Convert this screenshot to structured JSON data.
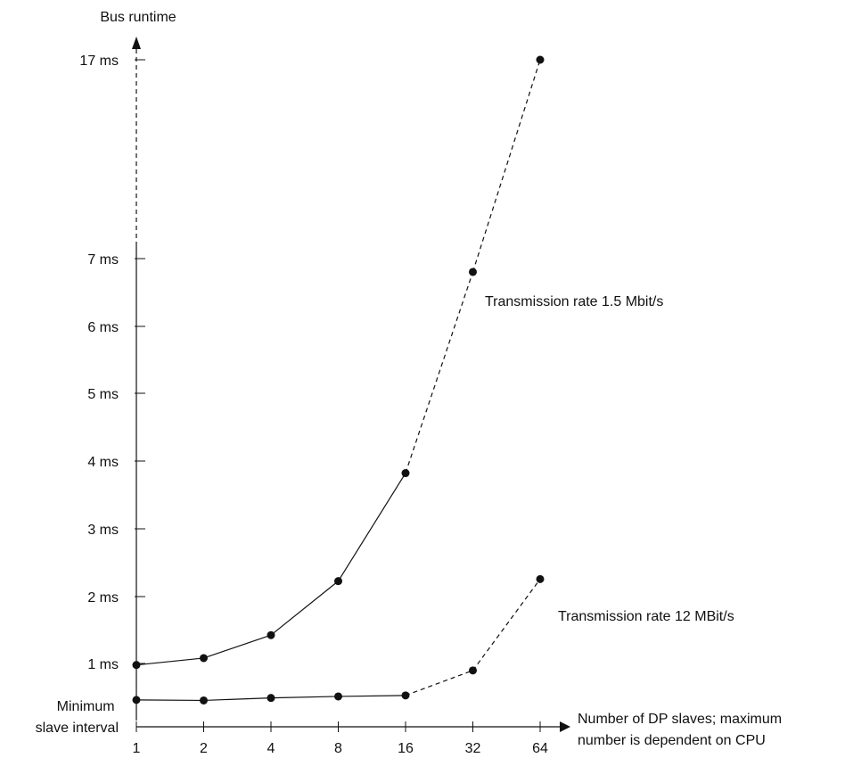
{
  "chart_data": {
    "type": "line",
    "ylabel": "Bus runtime",
    "xlabel_lines": [
      "Number of DP slaves; maximum",
      "number is dependent on CPU"
    ],
    "x_categories": [
      "1",
      "2",
      "4",
      "8",
      "16",
      "32",
      "64"
    ],
    "y_ticks": [
      {
        "label": "1 ms",
        "value": 1
      },
      {
        "label": "2 ms",
        "value": 2
      },
      {
        "label": "3 ms",
        "value": 3
      },
      {
        "label": "4 ms",
        "value": 4
      },
      {
        "label": "5 ms",
        "value": 5
      },
      {
        "label": "6 ms",
        "value": 6
      },
      {
        "label": "7 ms",
        "value": 7
      },
      {
        "label": "17 ms",
        "value": 17
      }
    ],
    "y_min_label_lines": [
      "Minimum",
      "slave interval"
    ],
    "y_axis_note": "axis break between 7 ms and 17 ms",
    "series": [
      {
        "name": "Transmission rate 1.5 Mbit/s",
        "x": [
          "1",
          "2",
          "4",
          "8",
          "16",
          "32",
          "64"
        ],
        "values": [
          0.97,
          1.08,
          1.42,
          2.22,
          3.82,
          6.8,
          17.0
        ]
      },
      {
        "name": "Transmission rate 12 MBit/s",
        "x": [
          "1",
          "2",
          "4",
          "8",
          "16",
          "32",
          "64"
        ],
        "values": [
          0.27,
          0.26,
          0.31,
          0.34,
          0.36,
          0.86,
          2.25
        ]
      }
    ],
    "solid_segment_until_x": "16",
    "dashed_segment_after_x": "16"
  }
}
